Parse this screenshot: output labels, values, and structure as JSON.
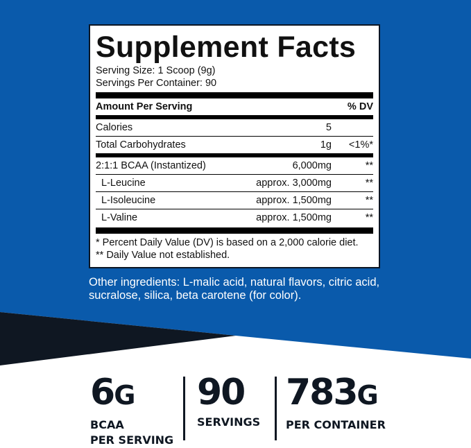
{
  "colors": {
    "background_blue": "#0a5aab",
    "navy": "#0f1722",
    "white": "#ffffff"
  },
  "facts": {
    "title": "Supplement Facts",
    "serving_size": "Serving Size: 1 Scoop (9g)",
    "servings_per_container": "Servings Per Container: 90",
    "header": {
      "amount": "Amount Per Serving",
      "dv": "% DV"
    },
    "rows": [
      {
        "name": "Calories",
        "amount": "5",
        "dv": ""
      },
      {
        "name": "Total Carbohydrates",
        "amount": "1g",
        "dv": "<1%*"
      },
      {
        "name": "2:1:1 BCAA (Instantized)",
        "amount": "6,000mg",
        "dv": "**"
      },
      {
        "name": "L-Leucine",
        "amount": "approx. 3,000mg",
        "dv": "**"
      },
      {
        "name": "L-Isoleucine",
        "amount": "approx. 1,500mg",
        "dv": "**"
      },
      {
        "name": "L-Valine",
        "amount": "approx. 1,500mg",
        "dv": "**"
      }
    ],
    "footnote1": "* Percent Daily Value (DV) is based on a 2,000 calorie diet.",
    "footnote2": "** Daily Value not established."
  },
  "other_ingredients": "Other ingredients: L-malic acid, natural flavors, citric acid, sucralose, silica, beta carotene (for color).",
  "stats": [
    {
      "value": "6",
      "unit": "G",
      "label1": "BCAA",
      "label2": "PER SERVING"
    },
    {
      "value": "90",
      "unit": "",
      "label1": "SERVINGS",
      "label2": ""
    },
    {
      "value": "783",
      "unit": "G",
      "label1": "PER CONTAINER",
      "label2": ""
    }
  ]
}
